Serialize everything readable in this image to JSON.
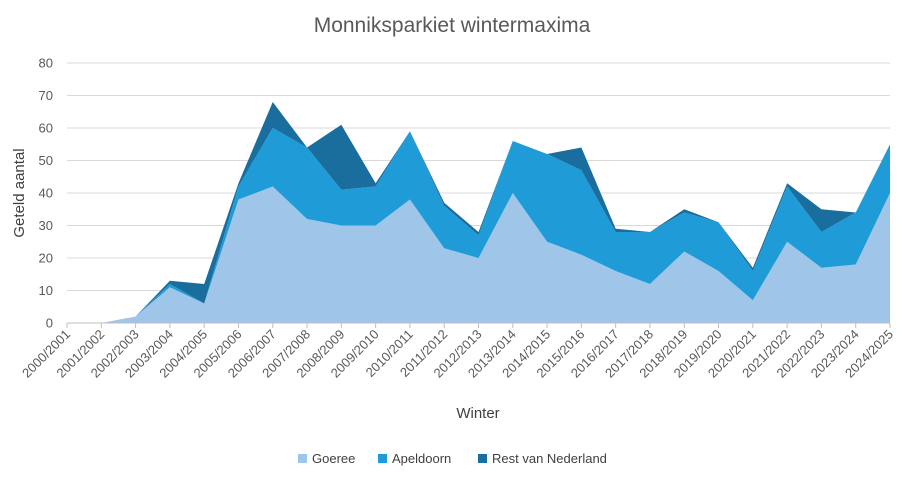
{
  "chart_data": {
    "type": "area",
    "stacked": true,
    "title": "Monniksparkiet wintermaxima",
    "xlabel": "Winter",
    "ylabel": "Geteld aantal",
    "ylim": [
      0,
      80
    ],
    "yticks": [
      0,
      10,
      20,
      30,
      40,
      50,
      60,
      70,
      80
    ],
    "grid": true,
    "legend_position": "bottom",
    "categories": [
      "2000/2001",
      "2001/2002",
      "2002/2003",
      "2003/2004",
      "2004/2005",
      "2005/2006",
      "2006/2007",
      "2007/2008",
      "2008/2009",
      "2009/2010",
      "2010/2011",
      "2011/2012",
      "2012/2013",
      "2013/2014",
      "2014/2015",
      "2015/2016",
      "2016/2017",
      "2017/2018",
      "2018/2019",
      "2019/2020",
      "2020/2021",
      "2021/2022",
      "2022/2023",
      "2023/2024",
      "2024/2025"
    ],
    "series": [
      {
        "name": "Goeree",
        "color": "#9fc5e8",
        "values": [
          0,
          0,
          2,
          11,
          6,
          38,
          42,
          32,
          30,
          30,
          38,
          23,
          20,
          40,
          25,
          21,
          16,
          12,
          22,
          16,
          7,
          25,
          17,
          18,
          40
        ]
      },
      {
        "name": "Apeldoorn",
        "color": "#1f9bd7",
        "values": [
          0,
          0,
          0,
          1,
          0,
          4,
          18,
          22,
          11,
          12,
          21,
          13,
          7,
          16,
          27,
          26,
          12,
          16,
          12,
          15,
          9,
          17,
          11,
          16,
          15
        ]
      },
      {
        "name": "Rest van Nederland",
        "color": "#1a6e9e",
        "values": [
          0,
          0,
          0,
          1,
          6,
          1,
          8,
          0,
          20,
          1,
          0,
          1,
          1,
          0,
          0,
          7,
          1,
          0,
          1,
          0,
          1,
          1,
          7,
          0,
          0
        ]
      }
    ]
  }
}
